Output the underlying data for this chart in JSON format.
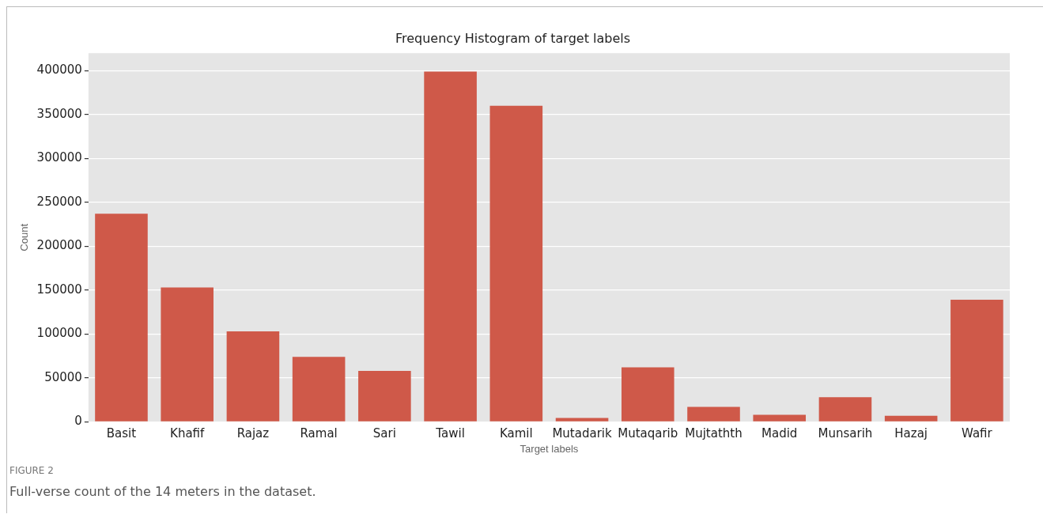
{
  "chart_data": {
    "type": "bar",
    "title": "Frequency Histogram of target labels",
    "xlabel": "Target labels",
    "ylabel": "Count",
    "categories": [
      "Basit",
      "Khafif",
      "Rajaz",
      "Ramal",
      "Sari",
      "Tawil",
      "Kamil",
      "Mutadarik",
      "Mutaqarib",
      "Mujtathth",
      "Madid",
      "Munsarih",
      "Hazaj",
      "Wafir"
    ],
    "values": [
      237000,
      153000,
      103000,
      74000,
      58000,
      399000,
      360000,
      4500,
      62000,
      17000,
      8000,
      28000,
      7000,
      139000
    ],
    "color": "#cf5949",
    "ylim": [
      0,
      420000
    ],
    "yticks": [
      0,
      50000,
      100000,
      150000,
      200000,
      250000,
      300000,
      350000,
      400000
    ],
    "grid": "y",
    "annotations": [
      "FIGURE 2",
      "Full-verse count of the 14 meters in the dataset."
    ]
  }
}
